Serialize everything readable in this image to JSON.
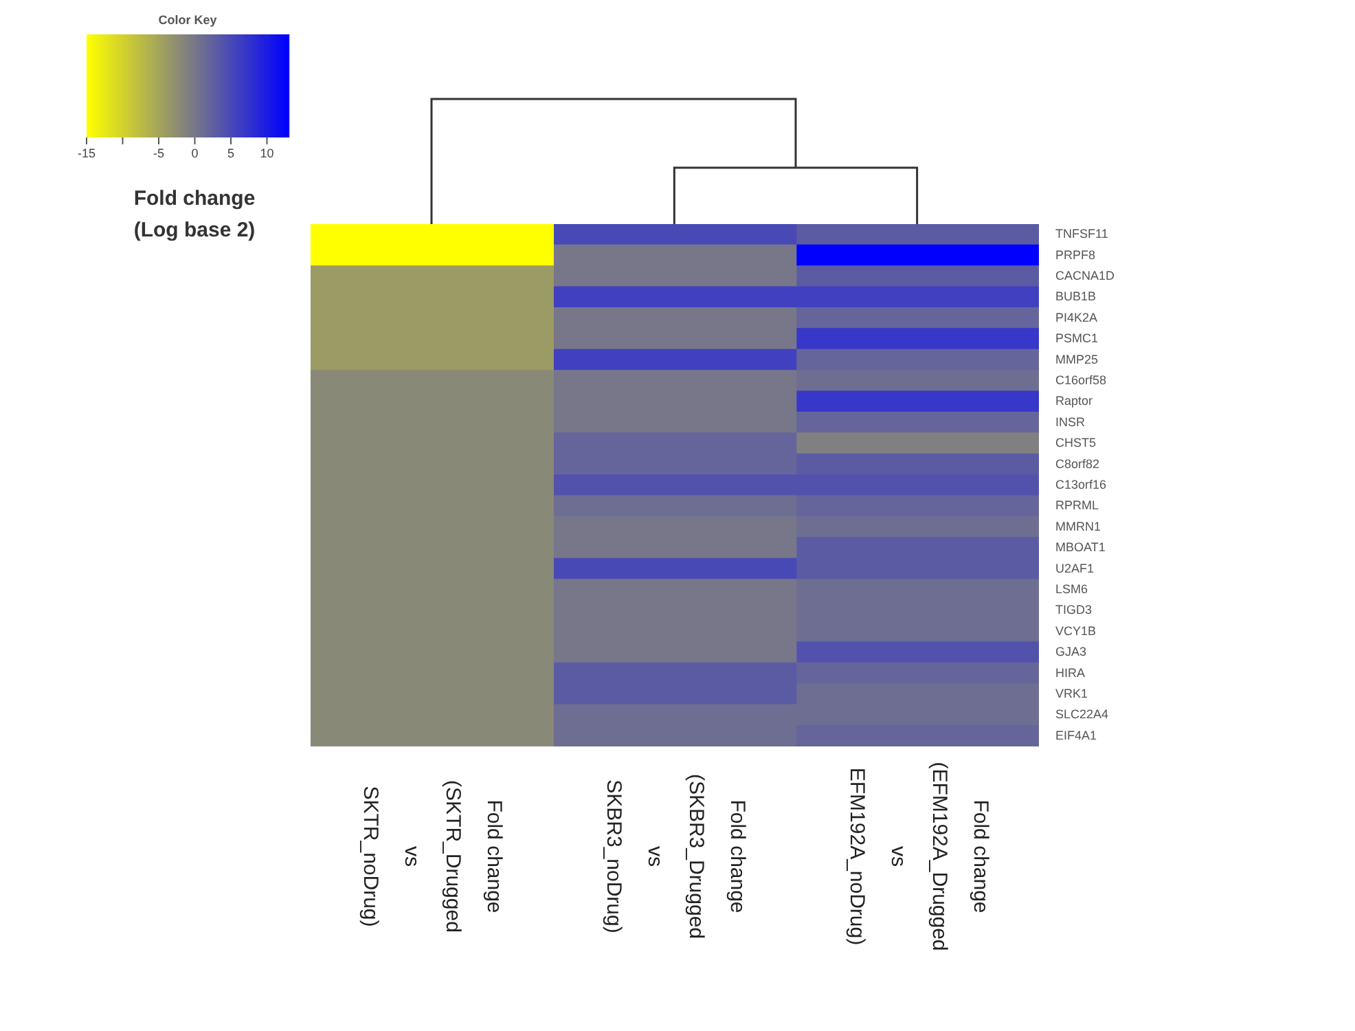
{
  "chart_data": {
    "type": "heatmap",
    "legend_title": "Color Key",
    "clabel": "Fold change\n(Log base 2)",
    "categories": [
      "Fold change\n(SKTR_Drugged\nvs\nSKTR_noDrug)",
      "Fold change\n(SKBR3_Drugged\nvs\nSKBR3_noDrug)",
      "Fold change\n(EFM192A_Drugged\nvs\nEFM192A_noDrug)"
    ],
    "y_categories": [
      "TNFSF11",
      "PRPF8",
      "CACNA1D",
      "BUB1B",
      "PI4K2A",
      "PSMC1",
      "MMP25",
      "C16orf58",
      "Raptor",
      "INSR",
      "CHST5",
      "C8orf82",
      "C13orf16",
      "RPRML",
      "MMRN1",
      "MBOAT1",
      "U2AF1",
      "LSM6",
      "TIGD3",
      "VCY1B",
      "GJA3",
      "HIRA",
      "VRK1",
      "SLC22A4",
      "EIF4A1"
    ],
    "cells": [
      [
        -15,
        5,
        3
      ],
      [
        -15,
        0,
        13
      ],
      [
        -4,
        0,
        3
      ],
      [
        -4,
        6,
        6
      ],
      [
        -4,
        0,
        2
      ],
      [
        -4,
        0,
        7
      ],
      [
        -4,
        6,
        2
      ],
      [
        -2,
        0,
        1
      ],
      [
        -2,
        0,
        7
      ],
      [
        -2,
        0,
        2
      ],
      [
        -2,
        2,
        -1
      ],
      [
        -2,
        2,
        3
      ],
      [
        -2,
        4,
        4
      ],
      [
        -2,
        1,
        2
      ],
      [
        -2,
        0,
        1
      ],
      [
        -2,
        0,
        3
      ],
      [
        -2,
        5,
        3
      ],
      [
        -2,
        0,
        1
      ],
      [
        -2,
        0,
        1
      ],
      [
        -2,
        0,
        1
      ],
      [
        -2,
        0,
        4
      ],
      [
        -2,
        3,
        2
      ],
      [
        -2,
        3,
        1
      ],
      [
        -2,
        1,
        1
      ],
      [
        -2,
        1,
        2
      ]
    ],
    "clim": [
      -15,
      13
    ],
    "cticks": [
      -15,
      {
        "value": -10,
        "label": null
      },
      -5,
      0,
      5,
      10
    ]
  }
}
